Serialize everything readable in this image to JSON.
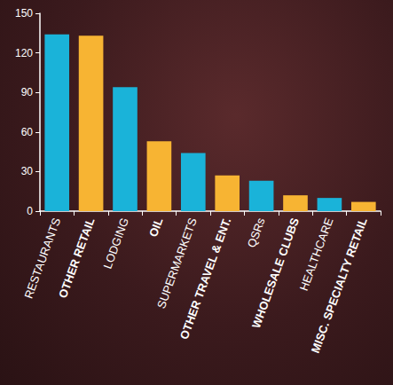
{
  "chart_data": {
    "type": "bar",
    "categories": [
      "RESTAURANTS",
      "OTHER RETAIL",
      "LODGING",
      "OIL",
      "SUPERMARKETS",
      "OTHER TRAVEL & ENT.",
      "QSRs",
      "WHOLESALE CLUBS",
      "HEALTHCARE",
      "MISC. SPECIALTY RETAIL"
    ],
    "values": [
      134,
      133,
      94,
      53,
      44,
      27,
      23,
      12,
      10,
      7
    ],
    "colors": [
      "#1ab3d9",
      "#f7b433",
      "#1ab3d9",
      "#f7b433",
      "#1ab3d9",
      "#f7b433",
      "#1ab3d9",
      "#f7b433",
      "#1ab3d9",
      "#f7b433"
    ],
    "ylim": [
      0,
      150
    ],
    "yticks": [
      0,
      30,
      60,
      90,
      120,
      150
    ],
    "grid": false
  }
}
